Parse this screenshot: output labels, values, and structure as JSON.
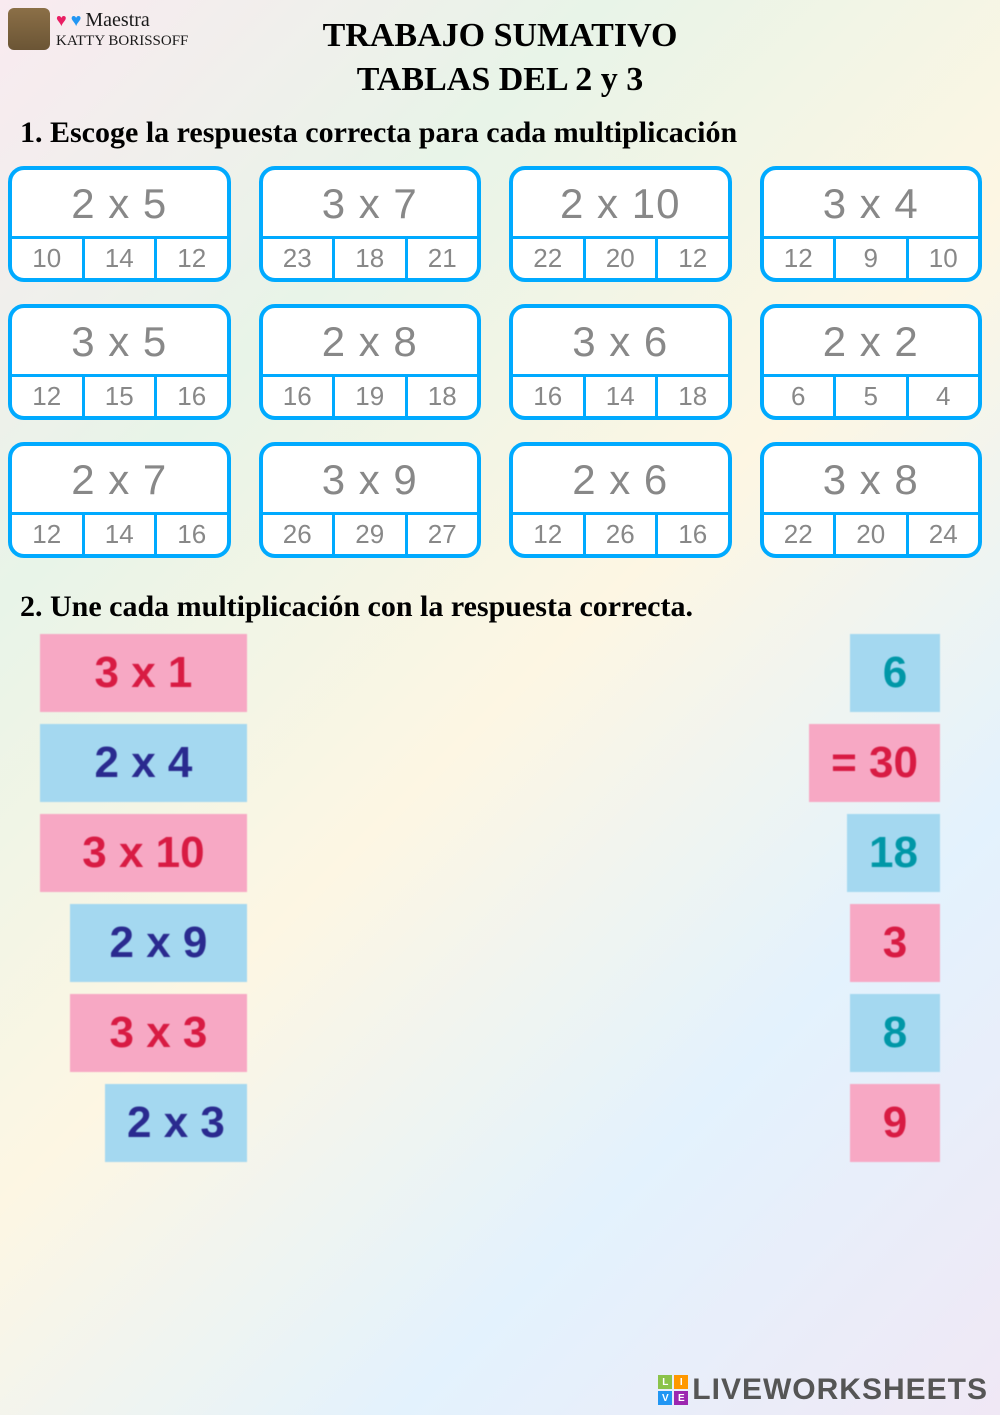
{
  "teacher": {
    "label_top": "Maestra",
    "name": "KATTY BORISSOFF"
  },
  "title_line1": "TRABAJO SUMATIVO",
  "title_line2": "TABLAS DEL 2 y 3",
  "instruction1": "1. Escoge la respuesta correcta para cada multiplicación",
  "instruction2": "2. Une cada multiplicación con la respuesta correcta.",
  "cards": [
    {
      "problem": "2 x 5",
      "answers": [
        "10",
        "14",
        "12"
      ]
    },
    {
      "problem": "3 x 7",
      "answers": [
        "23",
        "18",
        "21"
      ]
    },
    {
      "problem": "2 x 10",
      "answers": [
        "22",
        "20",
        "12"
      ]
    },
    {
      "problem": "3 x 4",
      "answers": [
        "12",
        "9",
        "10"
      ]
    },
    {
      "problem": "3 x 5",
      "answers": [
        "12",
        "15",
        "16"
      ]
    },
    {
      "problem": "2 x 8",
      "answers": [
        "16",
        "19",
        "18"
      ]
    },
    {
      "problem": "3 x 6",
      "answers": [
        "16",
        "14",
        "18"
      ]
    },
    {
      "problem": "2 x 2",
      "answers": [
        "6",
        "5",
        "4"
      ]
    },
    {
      "problem": "2 x 7",
      "answers": [
        "12",
        "14",
        "16"
      ]
    },
    {
      "problem": "3 x 9",
      "answers": [
        "26",
        "29",
        "27"
      ]
    },
    {
      "problem": "2 x 6",
      "answers": [
        "12",
        "26",
        "16"
      ]
    },
    {
      "problem": "3 x 8",
      "answers": [
        "22",
        "20",
        "24"
      ]
    }
  ],
  "match_left": [
    {
      "text": "3 x 1",
      "bg": "tile-pink",
      "fg": "text-red",
      "indent": ""
    },
    {
      "text": "2 x 4",
      "bg": "tile-blue",
      "fg": "text-navy",
      "indent": ""
    },
    {
      "text": "3 x 10",
      "bg": "tile-pink",
      "fg": "text-red",
      "indent": ""
    },
    {
      "text": "2 x 9",
      "bg": "tile-blue",
      "fg": "text-navy",
      "indent": "indent1"
    },
    {
      "text": "3 x 3",
      "bg": "tile-pink",
      "fg": "text-red",
      "indent": "indent1"
    },
    {
      "text": "2 x 3",
      "bg": "tile-blue",
      "fg": "text-navy",
      "indent": "indent3"
    }
  ],
  "match_right": [
    {
      "text": "6",
      "bg": "tile-blue",
      "fg": "text-teal"
    },
    {
      "text": "= 30",
      "bg": "tile-pink",
      "fg": "text-red"
    },
    {
      "text": "18",
      "bg": "tile-blue",
      "fg": "text-teal"
    },
    {
      "text": "3",
      "bg": "tile-pink",
      "fg": "text-red"
    },
    {
      "text": "8",
      "bg": "tile-blue",
      "fg": "text-teal"
    },
    {
      "text": "9",
      "bg": "tile-pink",
      "fg": "text-red"
    }
  ],
  "footer": "LIVEWORKSHEETS",
  "colors": {
    "card_border": "#00aaff",
    "card_text": "#888888",
    "pink_tile": "#f7a8c4",
    "blue_tile": "#a4d8f0",
    "red_text": "#d81b43",
    "navy_text": "#2a2a8f",
    "teal_text": "#0097a7"
  }
}
